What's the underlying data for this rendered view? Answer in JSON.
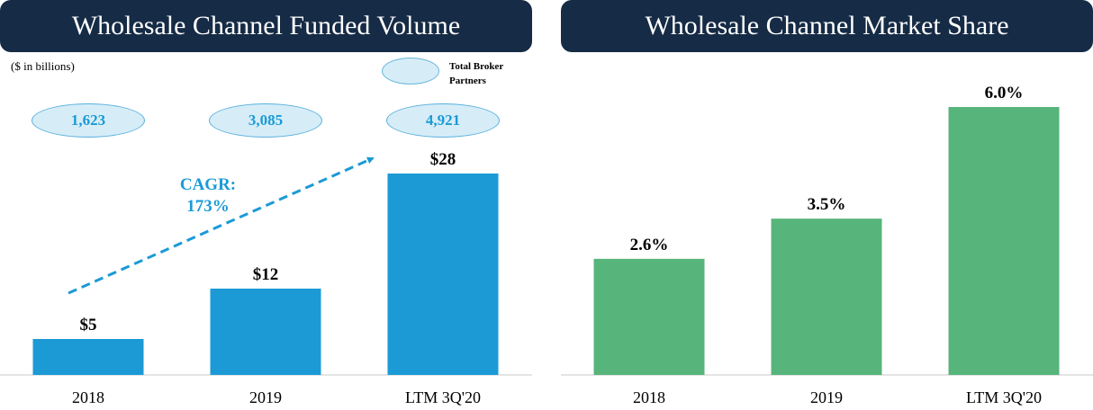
{
  "colors": {
    "header_bg": "#162b45",
    "header_text": "#ffffff",
    "volume_bar": "#1b9ad6",
    "share_bar": "#57b57b",
    "accent_blue": "#1b9ad6",
    "ellipse_fill": "#d6edf8",
    "ellipse_text": "#1b9ad6"
  },
  "left_panel": {
    "title": "Wholesale Channel Funded Volume",
    "units_note": "($ in billions)",
    "legend": {
      "label_line1": "Total Broker",
      "label_line2": "Partners"
    },
    "broker_partners": [
      "1,623",
      "3,085",
      "4,921"
    ],
    "cagr": {
      "label": "CAGR:",
      "value": "173%"
    }
  },
  "right_panel": {
    "title": "Wholesale Channel Market Share"
  },
  "chart_data": [
    {
      "type": "bar",
      "title": "Wholesale Channel Funded Volume",
      "ylabel": "$ in billions",
      "xlabel": "",
      "categories": [
        "2018",
        "2019",
        "LTM 3Q'20"
      ],
      "values": [
        5,
        12,
        28
      ],
      "labels": [
        "$5",
        "$12",
        "$28"
      ],
      "ylim": [
        0,
        28
      ],
      "grid": false,
      "legend": "top-right"
    },
    {
      "type": "bar",
      "title": "Wholesale Channel Market Share",
      "ylabel": "",
      "xlabel": "",
      "categories": [
        "2018",
        "2019",
        "LTM 3Q'20"
      ],
      "values": [
        2.6,
        3.5,
        6.0
      ],
      "labels": [
        "2.6%",
        "3.5%",
        "6.0%"
      ],
      "ylim": [
        0,
        6.0
      ],
      "grid": false
    }
  ]
}
